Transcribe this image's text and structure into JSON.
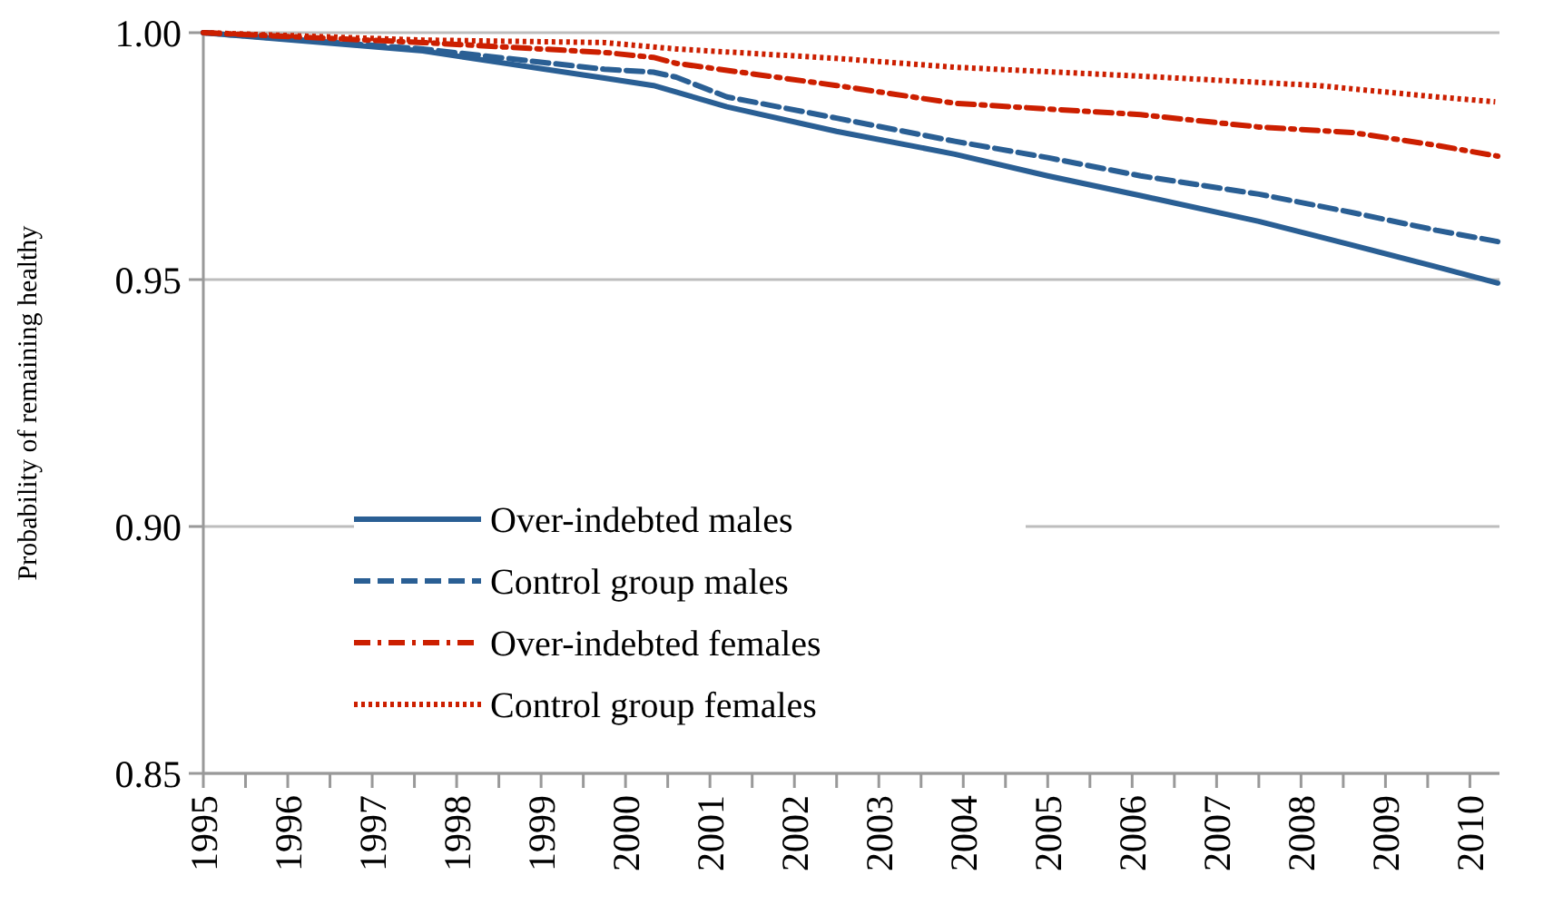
{
  "chart_data": {
    "type": "line",
    "ylabel": "Probability of remaining healthy",
    "xlim": [
      1995,
      2010.35
    ],
    "xticks": [
      1995,
      {
        "value": 1995.5,
        "label": null
      },
      1996,
      {
        "value": 1996.5,
        "label": null
      },
      1997,
      {
        "value": 1997.5,
        "label": null
      },
      1998,
      {
        "value": 1998.5,
        "label": null
      },
      1999,
      {
        "value": 1999.5,
        "label": null
      },
      2000,
      {
        "value": 2000.5,
        "label": null
      },
      2001,
      {
        "value": 2001.5,
        "label": null
      },
      2002,
      {
        "value": 2002.5,
        "label": null
      },
      2003,
      {
        "value": 2003.5,
        "label": null
      },
      2004,
      {
        "value": 2004.5,
        "label": null
      },
      2005,
      {
        "value": 2005.5,
        "label": null
      },
      2006,
      {
        "value": 2006.5,
        "label": null
      },
      2007,
      {
        "value": 2007.5,
        "label": null
      },
      2008,
      {
        "value": 2008.5,
        "label": null
      },
      2009,
      {
        "value": 2009.5,
        "label": null
      },
      2010
    ],
    "ylim": [
      0.85,
      1.0
    ],
    "yticks": [
      {
        "value": 0.85,
        "label": "0.85"
      },
      {
        "value": 0.9,
        "label": "0.90"
      },
      {
        "value": 0.95,
        "label": "0.95"
      },
      {
        "value": 1.0,
        "label": "1.00"
      }
    ],
    "grid": "y",
    "legend": "bottom left",
    "marker": "none",
    "series": [
      {
        "name": "Over-indebted males",
        "color": "#2a5f94",
        "line_style": "solid",
        "x": [
          1995,
          1997.6,
          1999.75,
          2000.33,
          2000.6,
          2001.2,
          2002.5,
          2003.9,
          2005.0,
          2006.1,
          2007.5,
          2008.6,
          2009.6,
          2010.33
        ],
        "values": [
          1.0,
          0.9963,
          0.9908,
          0.9893,
          0.988,
          0.985,
          0.98,
          0.9754,
          0.971,
          0.967,
          0.9618,
          0.957,
          0.9526,
          0.9493
        ]
      },
      {
        "name": "Control group males",
        "color": "#2a5f94",
        "line_style": "dashed",
        "x": [
          1995,
          1997.6,
          1999.75,
          2000.33,
          2000.6,
          2001.2,
          2002.5,
          2003.9,
          2005.0,
          2006.1,
          2007.5,
          2008.6,
          2009.6,
          2010.33
        ],
        "values": [
          1.0,
          0.9967,
          0.9926,
          0.992,
          0.991,
          0.987,
          0.9827,
          0.978,
          0.9747,
          0.971,
          0.9673,
          0.9636,
          0.96,
          0.9577
        ]
      },
      {
        "name": "Over-indebted females",
        "color": "#cc1f00",
        "line_style": "dashdot",
        "x": [
          1995,
          1997.6,
          1999.75,
          2000.33,
          2000.6,
          2002.5,
          2003.9,
          2006.1,
          2007.5,
          2008.6,
          2009.6,
          2010.33
        ],
        "values": [
          1.0,
          0.998,
          0.996,
          0.995,
          0.9938,
          0.9893,
          0.9857,
          0.9834,
          0.9809,
          0.9798,
          0.9772,
          0.975
        ]
      },
      {
        "name": "Control group females",
        "color": "#cc1f00",
        "line_style": "dotted",
        "x": [
          1995,
          1997.6,
          1999.75,
          2000.6,
          2002.5,
          2003.9,
          2006.1,
          2008.2,
          2009.6,
          2010.3
        ],
        "values": [
          1.0,
          0.9985,
          0.998,
          0.9967,
          0.9948,
          0.993,
          0.9912,
          0.9893,
          0.987,
          0.986
        ]
      }
    ]
  }
}
